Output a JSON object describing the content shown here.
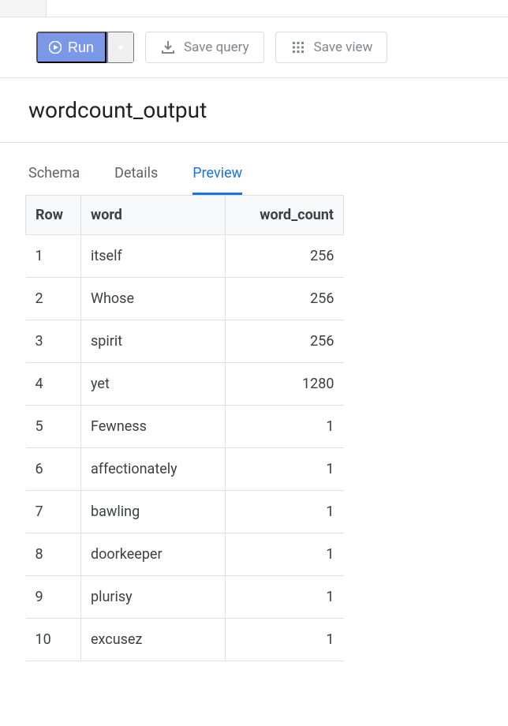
{
  "toolbar": {
    "run_label": "Run",
    "save_query_label": "Save query",
    "save_view_label": "Save view",
    "run_color": "#7b98e8",
    "ghost_border": "#dadce0",
    "ghost_text": "#80868b"
  },
  "title": "wordcount_output",
  "tabs": [
    {
      "label": "Schema",
      "active": false
    },
    {
      "label": "Details",
      "active": false
    },
    {
      "label": "Preview",
      "active": true
    }
  ],
  "table": {
    "columns": [
      "Row",
      "word",
      "word_count"
    ],
    "column_align": [
      "left",
      "left",
      "right"
    ],
    "rows": [
      [
        1,
        "itself",
        256
      ],
      [
        2,
        "Whose",
        256
      ],
      [
        3,
        "spirit",
        256
      ],
      [
        4,
        "yet",
        1280
      ],
      [
        5,
        "Fewness",
        1
      ],
      [
        6,
        "affectionately",
        1
      ],
      [
        7,
        "bawling",
        1
      ],
      [
        8,
        "doorkeeper",
        1
      ],
      [
        9,
        "plurisy",
        1
      ],
      [
        10,
        "excusez",
        1
      ]
    ],
    "header_bg": "#f8f9fa",
    "border_color": "#e0e0e0",
    "text_color": "#3c4043"
  },
  "colors": {
    "accent_blue": "#1a73e8",
    "text_secondary": "#5f6368",
    "background": "#ffffff"
  }
}
